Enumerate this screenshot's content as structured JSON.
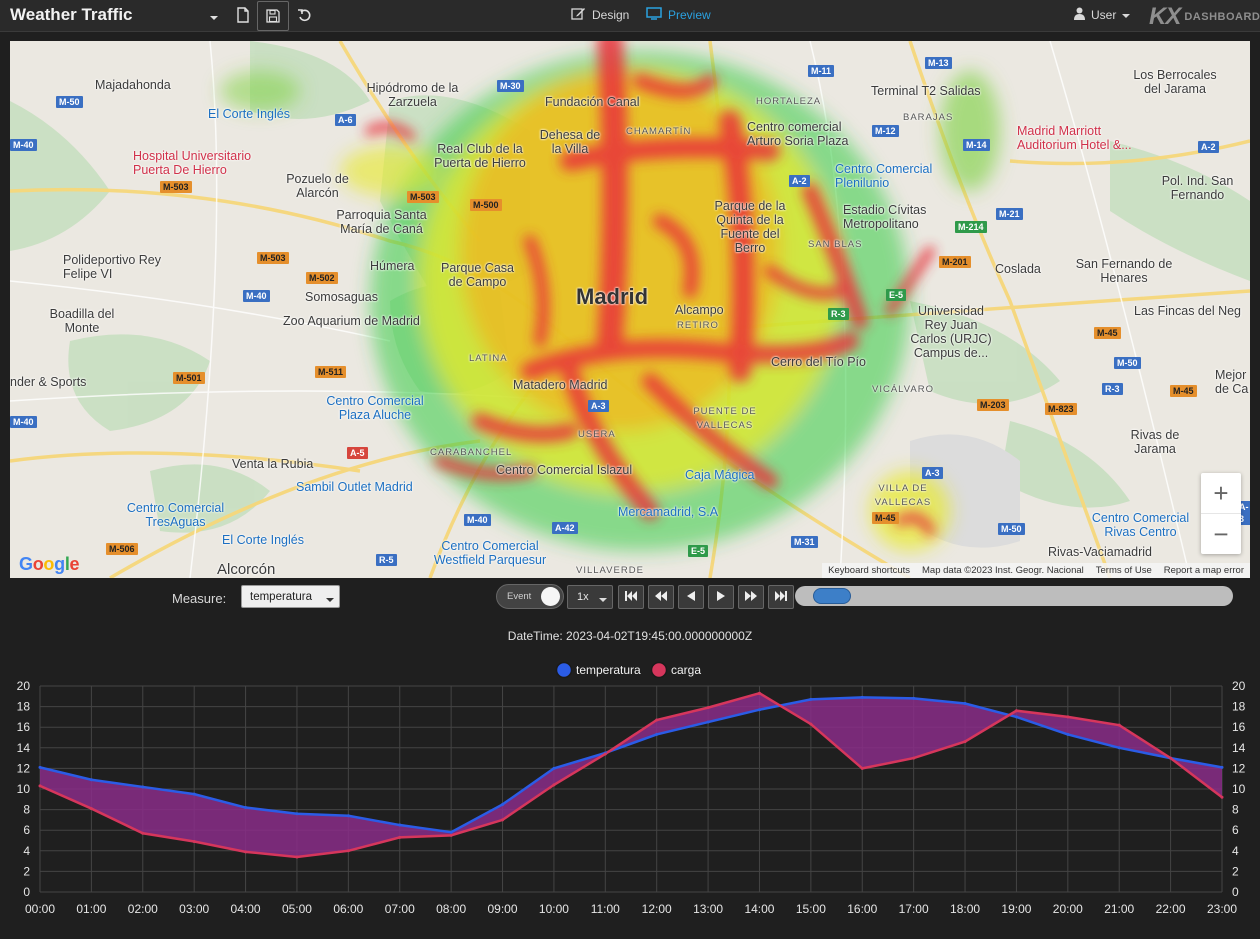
{
  "header": {
    "title": "Weather Traffic",
    "design_label": "Design",
    "preview_label": "Preview",
    "user_label": "User",
    "logo_mark": "KX",
    "logo_text": "DASHBOARDS"
  },
  "map": {
    "city_label": "Madrid",
    "places": [
      {
        "t": "Majadahonda",
        "c": ""
      },
      {
        "t": "El Corte Inglés",
        "c": "blue"
      },
      {
        "t": "Hipódromo de la Zarzuela",
        "c": "green"
      },
      {
        "t": "Hospital Universitario Puerta De Hierro",
        "c": "red"
      },
      {
        "t": "Pozuelo de Alarcón",
        "c": ""
      },
      {
        "t": "Real Club de la Puerta de Hierro",
        "c": "green"
      },
      {
        "t": "Dehesa de la Villa",
        "c": "green"
      },
      {
        "t": "Fundación Canal",
        "c": "green"
      },
      {
        "t": "CHAMARTÍN",
        "c": "small"
      },
      {
        "t": "HORTALEZA",
        "c": "small"
      },
      {
        "t": "Terminal T2 Salidas",
        "c": ""
      },
      {
        "t": "Los Berrocales del Jarama",
        "c": ""
      },
      {
        "t": "BARAJAS",
        "c": "small"
      },
      {
        "t": "Madrid Marriott Auditorium Hotel &...",
        "c": "red"
      },
      {
        "t": "Centro comercial Arturo Soria Plaza",
        "c": "green"
      },
      {
        "t": "Centro Comercial Plenilunio",
        "c": "blue"
      },
      {
        "t": "Pol. Ind. San Fernando",
        "c": ""
      },
      {
        "t": "Parroquia Santa María de Caná",
        "c": ""
      },
      {
        "t": "Parque de la Quinta de la Fuente del Berro",
        "c": "green"
      },
      {
        "t": "Estadio Cívitas Metropolitano",
        "c": "green"
      },
      {
        "t": "SAN BLAS",
        "c": "small"
      },
      {
        "t": "Polideportivo Rey Felipe VI",
        "c": "green"
      },
      {
        "t": "Húmera",
        "c": ""
      },
      {
        "t": "Parque Casa de Campo",
        "c": "green"
      },
      {
        "t": "Coslada",
        "c": ""
      },
      {
        "t": "San Fernando de Henares",
        "c": ""
      },
      {
        "t": "Somosaguas",
        "c": ""
      },
      {
        "t": "Boadilla del Monte",
        "c": ""
      },
      {
        "t": "Zoo Aquarium de Madrid",
        "c": "green"
      },
      {
        "t": "Alcampo",
        "c": "blue"
      },
      {
        "t": "RETIRO",
        "c": "small"
      },
      {
        "t": "Universidad Rey Juan Carlos (URJC) Campus de...",
        "c": "green"
      },
      {
        "t": "Las Fincas del Neg",
        "c": "green"
      },
      {
        "t": "LATINA",
        "c": "small"
      },
      {
        "t": "Cerro del Tío Pío",
        "c": "green"
      },
      {
        "t": "nder & Sports",
        "c": "green"
      },
      {
        "t": "Matadero Madrid",
        "c": "green"
      },
      {
        "t": "VICÁLVARO",
        "c": "small"
      },
      {
        "t": "Centro Comercial Plaza Aluche",
        "c": "blue"
      },
      {
        "t": "PUENTE DE VALLECAS",
        "c": "small"
      },
      {
        "t": "USERA",
        "c": "small"
      },
      {
        "t": "Rivas de Jarama",
        "c": ""
      },
      {
        "t": "CARABANCHEL",
        "c": "small"
      },
      {
        "t": "Venta la Rubia",
        "c": ""
      },
      {
        "t": "Centro Comercial Islazul",
        "c": "green"
      },
      {
        "t": "Caja Mágica",
        "c": "blue"
      },
      {
        "t": "Sambil Outlet Madrid",
        "c": "blue"
      },
      {
        "t": "VILLA DE VALLECAS",
        "c": "small"
      },
      {
        "t": "Centro Comercial TresAguas",
        "c": "blue"
      },
      {
        "t": "Mercamadrid, S.A",
        "c": "blue"
      },
      {
        "t": "Centro Comercial Rivas Centro",
        "c": "blue"
      },
      {
        "t": "El Corte Inglés",
        "c": "blue"
      },
      {
        "t": "Centro Comercial Westfield Parquesur",
        "c": "blue"
      },
      {
        "t": "Alcorcón",
        "c": ""
      },
      {
        "t": "Rivas-Vaciamadrid",
        "c": ""
      },
      {
        "t": "VILLAVERDE",
        "c": "small"
      },
      {
        "t": "Mejor de Ca",
        "c": ""
      }
    ],
    "roads": [
      "M-50",
      "A-6",
      "M-30",
      "M-11",
      "M-13",
      "M-40",
      "M-12",
      "A-2",
      "M-14",
      "M-503",
      "M-503",
      "M-500",
      "M-21",
      "M-214",
      "M-503",
      "M-502",
      "M-201",
      "M-40",
      "E-5",
      "M-45",
      "R-3",
      "M-511",
      "M-501",
      "M-50",
      "M-40",
      "M-203",
      "M-823",
      "R-3",
      "M-45",
      "A-3",
      "A-5",
      "A-42",
      "M-50",
      "M-40",
      "M-31",
      "E-5",
      "R-5",
      "M-506",
      "A-3",
      "M-45",
      "A-3",
      "A-2"
    ],
    "attribution": [
      "Keyboard shortcuts",
      "Map data ©2023 Inst. Geogr. Nacional",
      "Terms of Use",
      "Report a map error"
    ],
    "google_letters": [
      "G",
      "o",
      "o",
      "g",
      "l",
      "e"
    ],
    "zoom_in": "+",
    "zoom_out": "−"
  },
  "controls": {
    "measure_label": "Measure:",
    "measure_value": "temperatura",
    "event_label": "Event",
    "speed_value": "1x",
    "timeline_position": 0.04
  },
  "datetime_text": "DateTime: 2023-04-02T19:45:00.000000000Z",
  "colors": {
    "temperatura": "#2b5ce6",
    "carga": "#d6365c",
    "fill": "#8a2d88",
    "accent": "#2aa1e0"
  },
  "chart_data": {
    "type": "area",
    "categories": [
      "00:00",
      "01:00",
      "02:00",
      "03:00",
      "04:00",
      "05:00",
      "06:00",
      "07:00",
      "08:00",
      "09:00",
      "10:00",
      "11:00",
      "12:00",
      "13:00",
      "14:00",
      "15:00",
      "16:00",
      "17:00",
      "18:00",
      "19:00",
      "20:00",
      "21:00",
      "22:00",
      "23:00"
    ],
    "series": [
      {
        "name": "temperatura",
        "values": [
          12.1,
          10.9,
          10.2,
          9.5,
          8.2,
          7.6,
          7.4,
          6.5,
          5.8,
          8.5,
          12.0,
          13.5,
          15.3,
          16.5,
          17.7,
          18.7,
          18.9,
          18.8,
          18.3,
          17.0,
          15.3,
          14.0,
          13.0,
          12.1
        ]
      },
      {
        "name": "carga",
        "values": [
          10.3,
          8.1,
          5.7,
          4.9,
          3.9,
          3.4,
          4.0,
          5.3,
          5.5,
          7.0,
          10.4,
          13.4,
          16.7,
          17.9,
          19.3,
          16.3,
          12.0,
          13.0,
          14.6,
          17.6,
          17.0,
          16.2,
          13.0,
          9.2
        ]
      }
    ],
    "ylim": [
      0,
      20
    ],
    "yticks": [
      0,
      2,
      4,
      6,
      8,
      10,
      12,
      14,
      16,
      18,
      20
    ],
    "legend_position": "top-center",
    "grid": true
  }
}
